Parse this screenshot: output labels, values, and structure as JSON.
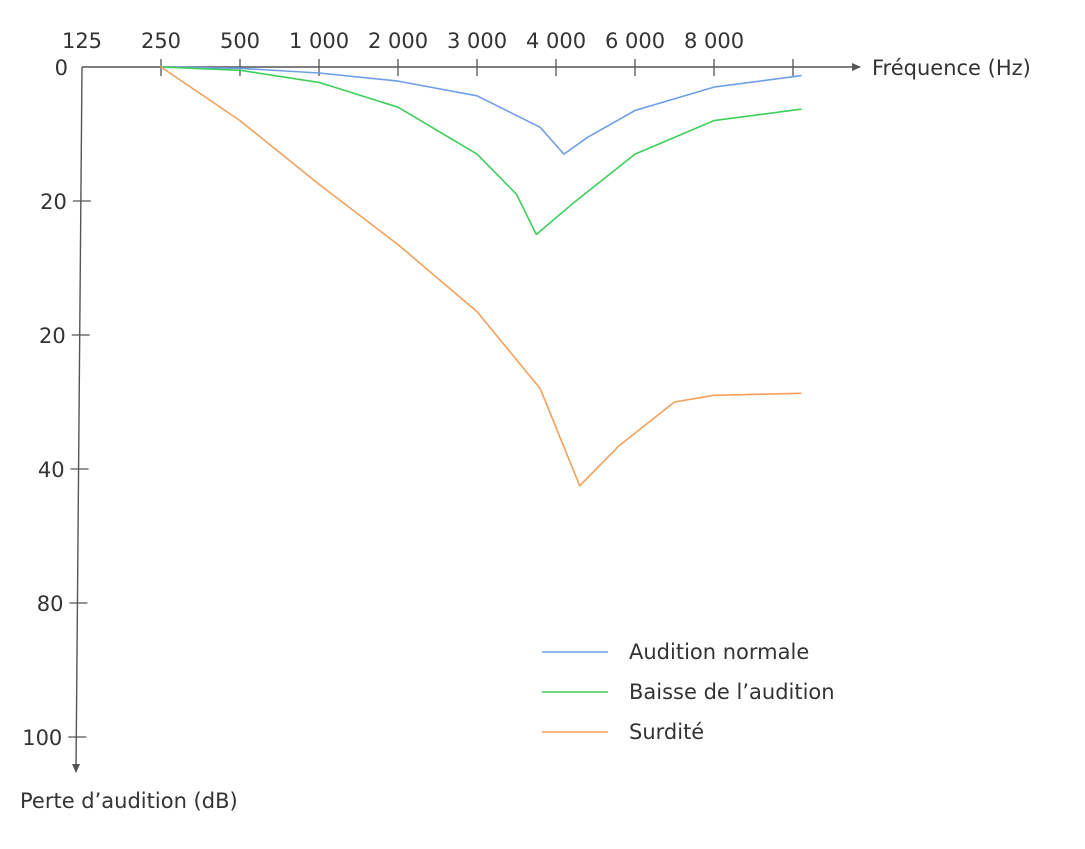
{
  "chart_data": {
    "type": "line",
    "xlabel": "Fréquence (Hz)",
    "ylabel": "Perte d’audition (dB)",
    "x_tick_labels": [
      "125",
      "250",
      "500",
      "1 000",
      "2 000",
      "3 000",
      "4 000",
      "6 000",
      "8 000"
    ],
    "y_tick_labels": [
      "0",
      "20",
      "20",
      "40",
      "80",
      "100"
    ],
    "x_scale": "categorical-log (tick index positions)",
    "y_axis": "inverted (0 at top, increasing downward)",
    "grid": false,
    "legend_position": "bottom-right",
    "series": [
      {
        "name": "Audition normale",
        "color": "#6f9ee8",
        "points": [
          {
            "x": 1.0,
            "y": 0.0
          },
          {
            "x": 2.0,
            "y": 0.2
          },
          {
            "x": 3.0,
            "y": 0.9
          },
          {
            "x": 4.0,
            "y": 2.1
          },
          {
            "x": 5.0,
            "y": 4.3
          },
          {
            "x": 5.8,
            "y": 9.0
          },
          {
            "x": 6.1,
            "y": 13.0
          },
          {
            "x": 6.4,
            "y": 10.5
          },
          {
            "x": 7.0,
            "y": 6.5
          },
          {
            "x": 8.0,
            "y": 3.0
          },
          {
            "x": 9.1,
            "y": 1.3
          }
        ]
      },
      {
        "name": "Baisse de l’audition",
        "color": "#3ecf5a",
        "points": [
          {
            "x": 1.0,
            "y": 0.0
          },
          {
            "x": 2.0,
            "y": 0.5
          },
          {
            "x": 3.0,
            "y": 2.3
          },
          {
            "x": 4.0,
            "y": 6.0
          },
          {
            "x": 5.0,
            "y": 13.0
          },
          {
            "x": 5.5,
            "y": 19.0
          },
          {
            "x": 5.75,
            "y": 25.0
          },
          {
            "x": 6.2,
            "y": 20.5
          },
          {
            "x": 7.0,
            "y": 13.0
          },
          {
            "x": 8.0,
            "y": 8.0
          },
          {
            "x": 9.1,
            "y": 6.3
          }
        ]
      },
      {
        "name": "Surdité",
        "color": "#f5a05a",
        "points": [
          {
            "x": 1.0,
            "y": 0.0
          },
          {
            "x": 2.0,
            "y": 8.0
          },
          {
            "x": 3.0,
            "y": 17.5
          },
          {
            "x": 4.0,
            "y": 26.5
          },
          {
            "x": 5.0,
            "y": 36.5
          },
          {
            "x": 5.8,
            "y": 48.0
          },
          {
            "x": 6.3,
            "y": 62.5
          },
          {
            "x": 6.8,
            "y": 56.5
          },
          {
            "x": 7.5,
            "y": 50.0
          },
          {
            "x": 8.0,
            "y": 49.0
          },
          {
            "x": 9.1,
            "y": 48.7
          }
        ]
      }
    ]
  }
}
